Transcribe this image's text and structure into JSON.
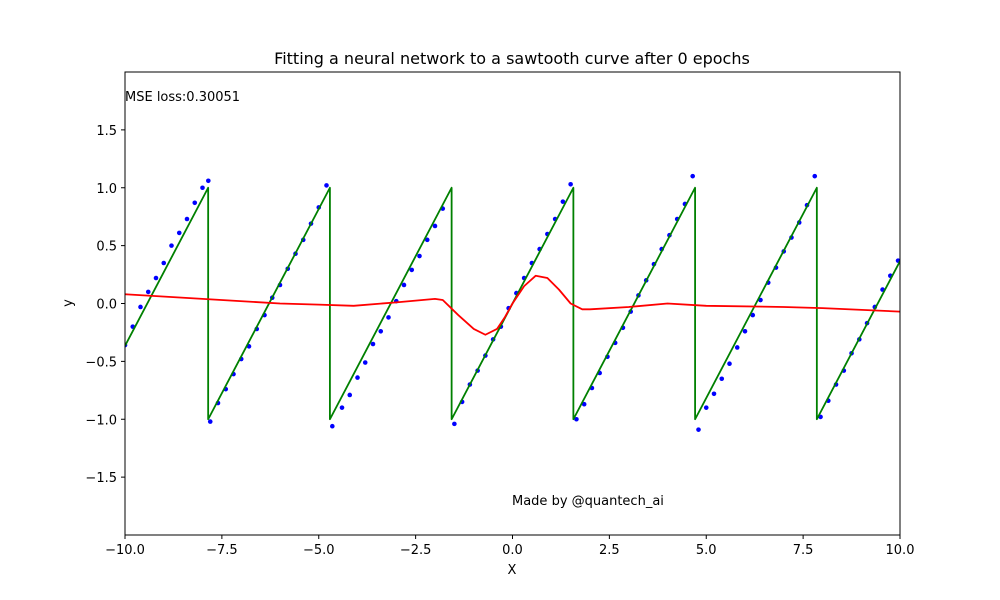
{
  "chart_data": {
    "type": "line",
    "title": "Fitting a neural network to a sawtooth curve after 0 epochs",
    "xlabel": "X",
    "ylabel": "y",
    "xlim": [
      -10,
      10
    ],
    "ylim": [
      -2,
      2
    ],
    "xticks": [
      -10,
      -7.5,
      -5,
      -2.5,
      0,
      2.5,
      5,
      7.5,
      10
    ],
    "xtick_labels": [
      "−10.0",
      "−7.5",
      "−5.0",
      "−2.5",
      "0.0",
      "2.5",
      "5.0",
      "7.5",
      "10.0"
    ],
    "yticks": [
      -1.5,
      -1.0,
      -0.5,
      0.0,
      0.5,
      1.0,
      1.5
    ],
    "ytick_labels": [
      "−1.5",
      "−1.0",
      "−0.5",
      "0.0",
      "0.5",
      "1.0",
      "1.5"
    ],
    "grid": false,
    "annotations": {
      "loss": "MSE loss:0.30051",
      "credit": "Made by @quantech_ai"
    },
    "series": [
      {
        "kind": "scatter",
        "color": "#0000ff",
        "note": "noisy samples of the sawtooth",
        "x": [
          -10.0,
          -9.8,
          -9.6,
          -9.4,
          -9.2,
          -9.0,
          -8.8,
          -8.6,
          -8.4,
          -8.2,
          -8.0,
          -7.85,
          -7.8,
          -7.6,
          -7.4,
          -7.2,
          -7.0,
          -6.8,
          -6.6,
          -6.4,
          -6.2,
          -6.0,
          -5.8,
          -5.6,
          -5.4,
          -5.2,
          -5.0,
          -4.8,
          -4.65,
          -4.4,
          -4.2,
          -4.0,
          -3.8,
          -3.6,
          -3.4,
          -3.2,
          -3.0,
          -2.8,
          -2.6,
          -2.4,
          -2.2,
          -2.0,
          -1.8,
          -1.5,
          -1.3,
          -1.1,
          -0.9,
          -0.7,
          -0.5,
          -0.3,
          -0.1,
          0.1,
          0.3,
          0.5,
          0.7,
          0.9,
          1.1,
          1.3,
          1.5,
          1.65,
          1.85,
          2.05,
          2.25,
          2.45,
          2.65,
          2.85,
          3.05,
          3.25,
          3.45,
          3.65,
          3.85,
          4.05,
          4.25,
          4.45,
          4.65,
          4.8,
          5.0,
          5.2,
          5.4,
          5.6,
          5.8,
          6.0,
          6.2,
          6.4,
          6.6,
          6.8,
          7.0,
          7.2,
          7.4,
          7.6,
          7.8,
          7.95,
          8.15,
          8.35,
          8.55,
          8.75,
          8.95,
          9.15,
          9.35,
          9.55,
          9.75,
          9.95
        ],
        "y": [
          -0.36,
          -0.2,
          -0.03,
          0.1,
          0.22,
          0.35,
          0.5,
          0.61,
          0.73,
          0.87,
          1.0,
          1.06,
          -1.02,
          -0.86,
          -0.74,
          -0.61,
          -0.48,
          -0.37,
          -0.22,
          -0.1,
          0.05,
          0.16,
          0.3,
          0.43,
          0.55,
          0.69,
          0.83,
          1.02,
          -1.06,
          -0.9,
          -0.79,
          -0.64,
          -0.51,
          -0.35,
          -0.24,
          -0.12,
          0.02,
          0.16,
          0.29,
          0.41,
          0.55,
          0.67,
          0.82,
          -1.04,
          -0.85,
          -0.7,
          -0.58,
          -0.45,
          -0.31,
          -0.2,
          -0.04,
          0.09,
          0.22,
          0.35,
          0.47,
          0.6,
          0.73,
          0.88,
          1.03,
          -1.0,
          -0.87,
          -0.73,
          -0.6,
          -0.46,
          -0.34,
          -0.21,
          -0.07,
          0.07,
          0.2,
          0.34,
          0.47,
          0.59,
          0.73,
          0.86,
          1.1,
          -1.09,
          -0.9,
          -0.78,
          -0.65,
          -0.52,
          -0.38,
          -0.24,
          -0.1,
          0.03,
          0.18,
          0.31,
          0.45,
          0.57,
          0.7,
          0.85,
          1.1,
          -0.98,
          -0.84,
          -0.7,
          -0.58,
          -0.43,
          -0.31,
          -0.17,
          -0.03,
          0.12,
          0.24,
          0.37
        ]
      },
      {
        "kind": "line",
        "color": "#008000",
        "note": "true sawtooth",
        "x": [
          -10.0,
          -7.854,
          -7.854,
          -4.712,
          -4.712,
          -1.571,
          -1.571,
          1.571,
          1.571,
          4.712,
          4.712,
          7.854,
          7.854,
          10.0
        ],
        "y": [
          -0.366,
          1.0,
          -1.0,
          1.0,
          -1.0,
          1.0,
          -1.0,
          1.0,
          -1.0,
          1.0,
          -1.0,
          1.0,
          -1.0,
          0.366
        ]
      },
      {
        "kind": "line",
        "color": "#ff0000",
        "note": "network prediction",
        "x": [
          -10.0,
          -8.0,
          -6.0,
          -5.0,
          -4.1,
          -3.0,
          -2.0,
          -1.8,
          -1.4,
          -1.0,
          -0.7,
          -0.4,
          -0.2,
          0.0,
          0.3,
          0.6,
          0.9,
          1.2,
          1.5,
          1.8,
          2.0,
          3.0,
          4.0,
          5.0,
          7.0,
          8.0,
          10.0
        ],
        "y": [
          0.08,
          0.04,
          0.0,
          -0.01,
          -0.02,
          0.01,
          0.04,
          0.03,
          -0.1,
          -0.22,
          -0.27,
          -0.22,
          -0.12,
          0.0,
          0.15,
          0.24,
          0.22,
          0.12,
          0.0,
          -0.05,
          -0.05,
          -0.03,
          0.0,
          -0.02,
          -0.03,
          -0.04,
          -0.07
        ]
      }
    ]
  }
}
